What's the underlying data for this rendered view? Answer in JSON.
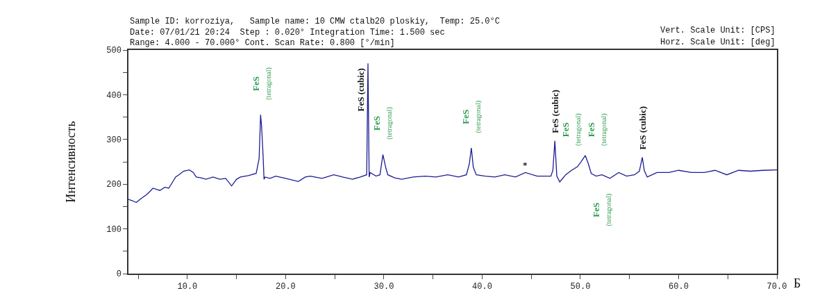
{
  "chart_data": {
    "type": "line",
    "title": "Sample ID: korroziya,   Sample name: 10 CMW ctalb20 ploskiy,  Temp: 25.0°C\nDate: 07/01/21 20:24  Step : 0.020° Integration Time: 1.500 sec\nRange: 4.000 - 70.000° Cont. Scan Rate: 0.800 [°/min]",
    "xlabel": "Б",
    "ylabel": "Интенсивность",
    "x": [
      4.0,
      4.4,
      4.8,
      5.3,
      5.8,
      6.2,
      6.5,
      6.9,
      7.2,
      7.7,
      8.1,
      8.5,
      8.8,
      9.2,
      9.6,
      10.2,
      10.6,
      10.9,
      11.4,
      11.9,
      12.6,
      13.3,
      13.9,
      14.5,
      15.0,
      15.4,
      16.2,
      17.0,
      17.3,
      17.45,
      17.55,
      17.7,
      17.8,
      17.9,
      18.4,
      19.0,
      20.0,
      21.3,
      22.0,
      22.5,
      23.7,
      24.9,
      25.8,
      26.8,
      27.6,
      28.25,
      28.38,
      28.5,
      28.6,
      29.2,
      29.6,
      29.9,
      30.2,
      30.4,
      31.1,
      31.8,
      33.0,
      34.2,
      35.3,
      36.5,
      37.6,
      38.4,
      38.7,
      38.9,
      39.1,
      39.4,
      40.3,
      41.3,
      42.3,
      43.4,
      44.4,
      45.6,
      47.0,
      47.2,
      47.4,
      47.6,
      47.9,
      48.5,
      49.1,
      49.7,
      50.1,
      50.5,
      50.8,
      51.1,
      51.6,
      52.2,
      53.0,
      53.9,
      54.7,
      55.5,
      56.0,
      56.3,
      56.5,
      56.8,
      57.8,
      59.0,
      60.0,
      61.3,
      62.6,
      63.7,
      64.9,
      66.1,
      67.3,
      68.6,
      70.0
    ],
    "series": [
      {
        "color": "#1c1c94",
        "values": [
          166,
          163,
          159,
          168,
          176,
          184,
          191,
          188,
          186,
          193,
          191,
          205,
          216,
          222,
          229,
          232,
          226,
          216,
          214,
          211,
          216,
          211,
          213,
          196,
          211,
          216,
          219,
          224,
          257,
          355,
          330,
          266,
          211,
          216,
          213,
          218,
          213,
          206,
          216,
          218,
          213,
          221,
          216,
          211,
          216,
          221,
          470,
          216,
          226,
          218,
          221,
          266,
          236,
          221,
          214,
          211,
          216,
          218,
          216,
          221,
          216,
          221,
          246,
          281,
          238,
          221,
          218,
          216,
          221,
          216,
          226,
          218,
          218,
          231,
          297,
          218,
          205,
          221,
          231,
          239,
          251,
          264,
          246,
          224,
          218,
          221,
          213,
          226,
          218,
          221,
          229,
          260,
          231,
          216,
          226,
          226,
          231,
          226,
          226,
          231,
          221,
          231,
          229,
          231,
          232
        ]
      }
    ],
    "xlim": [
      4,
      70
    ],
    "xticks": [
      {
        "value": 5,
        "label": null
      },
      {
        "value": 10,
        "label": "10.0"
      },
      {
        "value": 15,
        "label": null
      },
      {
        "value": 20,
        "label": "20.0"
      },
      {
        "value": 25,
        "label": null
      },
      {
        "value": 30,
        "label": "30.0"
      },
      {
        "value": 35,
        "label": null
      },
      {
        "value": 40,
        "label": "40.0"
      },
      {
        "value": 45,
        "label": null
      },
      {
        "value": 50,
        "label": "50.0"
      },
      {
        "value": 55,
        "label": null
      },
      {
        "value": 60,
        "label": "60.0"
      },
      {
        "value": 65,
        "label": null
      },
      {
        "value": 70,
        "label": "70.0"
      }
    ],
    "ylim": [
      0,
      500
    ],
    "yticks": [
      0,
      {
        "value": 50,
        "label": null
      },
      100,
      {
        "value": 150,
        "label": null
      },
      200,
      {
        "value": 250,
        "label": null
      },
      300,
      {
        "value": 350,
        "label": null
      },
      400,
      {
        "value": 450,
        "label": null
      },
      500
    ],
    "marker": "none",
    "line_style": "solid",
    "annotations": [
      "Vert. Scale Unit: [CPS]",
      "Horz. Scale Unit: [deg]",
      {
        "text": "FeS\n(tetragonal)",
        "x": 17.55,
        "y": 355
      },
      {
        "text": "FeS (cubic)",
        "x": 28.38,
        "y": 470
      },
      {
        "text": "FeS\n(tetragonal)",
        "x": 29.9,
        "y": 266
      },
      {
        "text": "FeS\n(tetragonal)",
        "x": 38.9,
        "y": 281
      },
      {
        "text": "*",
        "x": 44.4,
        "y": 226
      },
      {
        "text": "FeS (cubic)",
        "x": 47.4,
        "y": 297
      },
      {
        "text": "FeS\n(tetragonal)",
        "x": 49.1,
        "y": 231
      },
      {
        "text": "FeS\n(tetragonal)",
        "x": 50.5,
        "y": 264
      },
      {
        "text": "FeS (cubic)",
        "x": 56.3,
        "y": 260
      },
      {
        "text": "FeS\n(tetragonal)",
        "x": 52.2,
        "y": 221
      }
    ]
  }
}
